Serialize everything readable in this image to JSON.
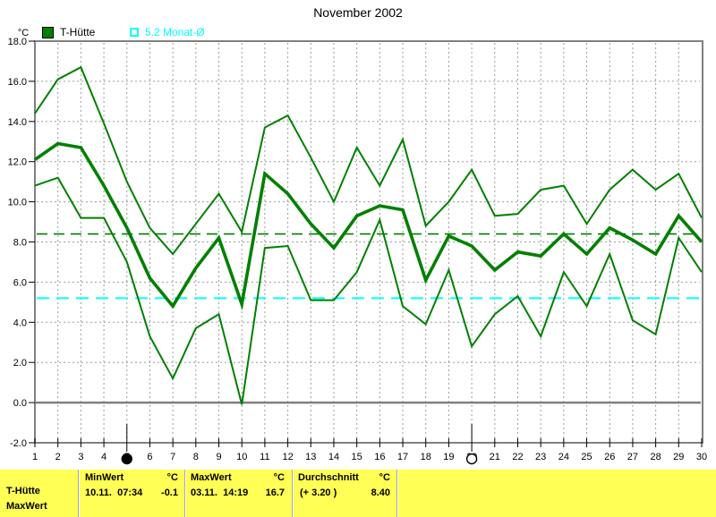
{
  "title": "November 2002",
  "legend": [
    {
      "label": "T-Hütte",
      "marker": "filled-square",
      "color": "#008000"
    },
    {
      "label": "5.2 Monat-Ø",
      "marker": "open-square",
      "color": "#00ffff"
    }
  ],
  "y_axis": {
    "unit": "°C",
    "min": -2,
    "max": 18,
    "tick_step": 2
  },
  "x_axis": {
    "first_day": 1,
    "last_day": 30,
    "long_tick_days": [
      5,
      20
    ]
  },
  "moon_markers": [
    {
      "day": 5,
      "phase": "new-moon"
    },
    {
      "day": 20,
      "phase": "full-moon"
    }
  ],
  "chart_data": {
    "type": "line",
    "title": "November 2002",
    "ylabel": "°C",
    "ylim": [
      -2,
      18
    ],
    "ytick_step": 2,
    "grid": true,
    "x": [
      1,
      2,
      3,
      4,
      5,
      6,
      7,
      8,
      9,
      10,
      11,
      12,
      13,
      14,
      15,
      16,
      17,
      18,
      19,
      20,
      21,
      22,
      23,
      24,
      25,
      26,
      27,
      28,
      29,
      30
    ],
    "series": [
      {
        "name": "max",
        "color": "#008000",
        "width": 2,
        "values": [
          14.4,
          16.1,
          16.7,
          13.9,
          11.0,
          8.7,
          7.4,
          8.9,
          10.4,
          8.5,
          13.7,
          14.3,
          12.2,
          10.0,
          12.7,
          10.8,
          13.1,
          8.8,
          10.0,
          11.6,
          9.3,
          9.4,
          10.6,
          10.8,
          8.9,
          10.6,
          11.6,
          10.6,
          11.4,
          9.2
        ]
      },
      {
        "name": "mittel",
        "color": "#008000",
        "width": 3.6,
        "values": [
          12.1,
          12.9,
          12.7,
          10.8,
          8.7,
          6.2,
          4.8,
          6.7,
          8.2,
          4.9,
          11.4,
          10.4,
          8.9,
          7.7,
          9.3,
          9.8,
          9.6,
          6.1,
          8.3,
          7.8,
          6.6,
          7.5,
          7.3,
          8.4,
          7.4,
          8.7,
          8.1,
          7.4,
          9.3,
          8.0
        ]
      },
      {
        "name": "min",
        "color": "#008000",
        "width": 2,
        "values": [
          10.8,
          11.2,
          9.2,
          9.2,
          7.0,
          3.3,
          1.2,
          3.7,
          4.4,
          -0.1,
          7.7,
          7.8,
          5.1,
          5.1,
          6.5,
          9.1,
          4.8,
          3.9,
          6.6,
          2.8,
          4.4,
          5.3,
          3.3,
          6.5,
          4.8,
          7.4,
          4.1,
          3.4,
          8.2,
          6.5
        ]
      }
    ],
    "ref_lines": [
      {
        "name": "durchschnitt",
        "value": 8.4,
        "color": "#008000",
        "style": "dashed"
      },
      {
        "name": "monats-mittel",
        "value": 5.2,
        "color": "#00ffff",
        "style": "dashed"
      }
    ]
  },
  "status_bar": {
    "station_line1": "T-Hütte",
    "station_line2": "MaxWert",
    "columns": [
      {
        "label": "MinWert",
        "unit": "°C",
        "detail": "10.11.  07:34",
        "value": "-0.1"
      },
      {
        "label": "MaxWert",
        "unit": "°C",
        "detail": "03.11.  14:19",
        "value": "16.7"
      },
      {
        "label": "Durchschnitt",
        "unit": "°C",
        "detail": "(+ 3.20 )",
        "value": "8.40"
      }
    ]
  }
}
